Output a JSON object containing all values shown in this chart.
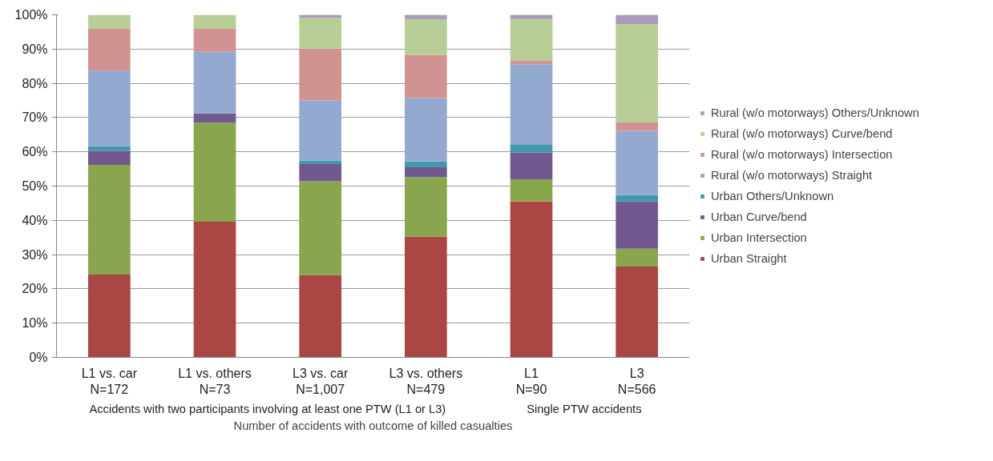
{
  "chart_data": {
    "type": "bar",
    "stacked": true,
    "categories": [
      "L1 vs. car\nN=172",
      "L1 vs. others\nN=73",
      "L3 vs. car\nN=1,007",
      "L3 vs. others\nN=479",
      "L1\nN=90",
      "L3\nN=566"
    ],
    "xlabel": "Number of accidents with outcome of killed casualties",
    "annotations": [
      "Accidents with two participants involving at least one PTW (L1 or L3)",
      "Single PTW accidents"
    ],
    "ylim": [
      0,
      100
    ],
    "yticks": [
      {
        "value": 0,
        "label": "0%"
      },
      {
        "value": 10,
        "label": "10%"
      },
      {
        "value": 20,
        "label": "20%"
      },
      {
        "value": 30,
        "label": "30%"
      },
      {
        "value": 40,
        "label": "40%"
      },
      {
        "value": 50,
        "label": "50%"
      },
      {
        "value": 60,
        "label": "60%"
      },
      {
        "value": 70,
        "label": "70%"
      },
      {
        "value": 80,
        "label": "80%"
      },
      {
        "value": 90,
        "label": "90%"
      },
      {
        "value": 100,
        "label": "100%"
      }
    ],
    "grid": "y",
    "legend": "right",
    "series": [
      {
        "name": "Urban Straight",
        "color": "#aa4643",
        "values": [
          24.2,
          39.6,
          24.0,
          35.3,
          45.5,
          26.5
        ]
      },
      {
        "name": "Urban Intersection",
        "color": "#89a54e",
        "values": [
          32.0,
          28.9,
          27.4,
          17.3,
          6.5,
          5.2
        ]
      },
      {
        "name": "Urban Curve/bend",
        "color": "#71588f",
        "values": [
          4.1,
          2.7,
          5.0,
          2.9,
          7.8,
          13.8
        ]
      },
      {
        "name": "Urban Others/Unknown",
        "color": "#4198af",
        "values": [
          1.3,
          0,
          1.1,
          1.7,
          2.4,
          1.9
        ]
      },
      {
        "name": "Rural (w/o motorways) Straight",
        "color": "#93a9cf",
        "values": [
          22.1,
          18.0,
          17.5,
          18.5,
          23.4,
          18.7
        ]
      },
      {
        "name": "Rural (w/o motorways) Intersection",
        "color": "#d19392",
        "values": [
          12.2,
          6.7,
          15.1,
          12.6,
          1.1,
          2.5
        ]
      },
      {
        "name": "Rural (w/o motorways) Curve/bend",
        "color": "#b9cd96",
        "values": [
          4.1,
          4.1,
          9.0,
          10.4,
          12.1,
          28.7
        ]
      },
      {
        "name": "Rural (w/o motorways) Others/Unknown",
        "color": "#a99bbd",
        "values": [
          0,
          0,
          0.9,
          1.3,
          1.2,
          2.7
        ]
      }
    ]
  }
}
